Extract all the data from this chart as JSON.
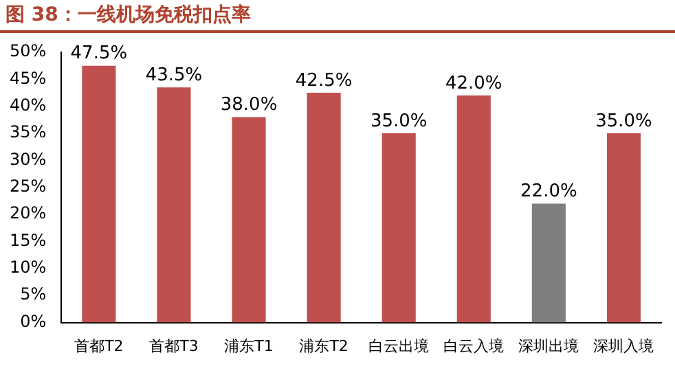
{
  "chart_data": {
    "type": "bar",
    "title": "图 38：一线机场免税扣点率",
    "categories": [
      "首都T2",
      "首都T3",
      "浦东T1",
      "浦东T2",
      "白云出境",
      "白云入境",
      "深圳出境",
      "深圳入境"
    ],
    "values": [
      47.5,
      43.5,
      38.0,
      42.5,
      35.0,
      42.0,
      22.0,
      35.0
    ],
    "colors": [
      "#c0504d",
      "#c0504d",
      "#c0504d",
      "#c0504d",
      "#c0504d",
      "#c0504d",
      "#7f7f7f",
      "#c0504d"
    ],
    "value_labels": [
      "47.5%",
      "43.5%",
      "38.0%",
      "42.5%",
      "35.0%",
      "42.0%",
      "22.0%",
      "35.0%"
    ],
    "ylim": [
      0,
      50
    ],
    "yticks": [
      {
        "value": 0,
        "label": "0%"
      },
      {
        "value": 5,
        "label": "5%"
      },
      {
        "value": 10,
        "label": "10%"
      },
      {
        "value": 15,
        "label": "15%"
      },
      {
        "value": 20,
        "label": "20%"
      },
      {
        "value": 25,
        "label": "25%"
      },
      {
        "value": 30,
        "label": "30%"
      },
      {
        "value": 35,
        "label": "35%"
      },
      {
        "value": 40,
        "label": "40%"
      },
      {
        "value": 45,
        "label": "45%"
      },
      {
        "value": 50,
        "label": "50%"
      }
    ],
    "grid": false,
    "legend": false
  }
}
